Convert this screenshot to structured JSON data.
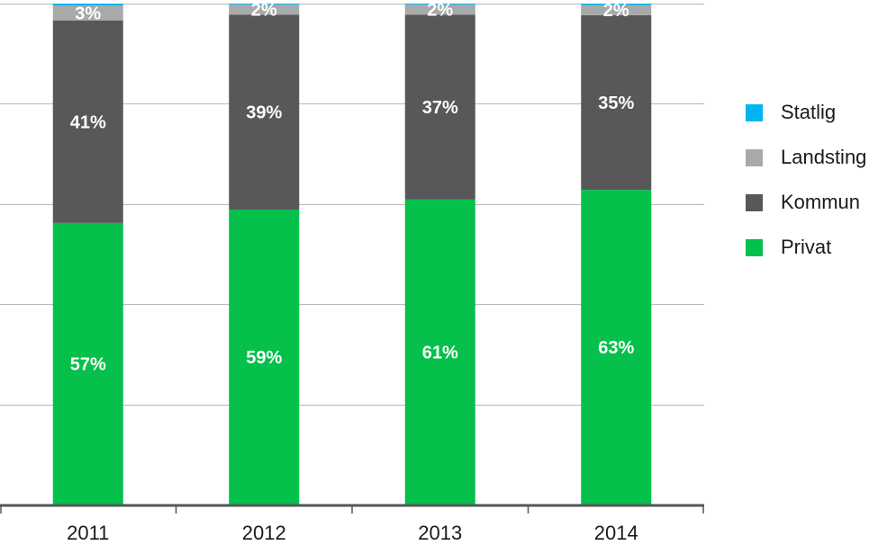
{
  "chart_data": {
    "type": "bar",
    "stacked": true,
    "percent_stacked": true,
    "categories": [
      "2011",
      "2012",
      "2013",
      "2014"
    ],
    "series": [
      {
        "name": "Privat",
        "color": "#05c04a",
        "values": [
          57,
          59,
          61,
          63
        ],
        "labels": [
          "57%",
          "59%",
          "61%",
          "63%"
        ]
      },
      {
        "name": "Kommun",
        "color": "#58585a",
        "values": [
          41,
          39,
          37,
          35
        ],
        "labels": [
          "41%",
          "39%",
          "37%",
          "35%"
        ]
      },
      {
        "name": "Landsting",
        "color": "#a9a9a9",
        "values": [
          3,
          2,
          2,
          2
        ],
        "labels": [
          "3%",
          "2%",
          "2%",
          "2%"
        ]
      },
      {
        "name": "Statlig",
        "color": "#00b4f0",
        "values": [
          0.4,
          0.2,
          0.2,
          0.3
        ],
        "labels": [
          "",
          "",
          "",
          ""
        ]
      }
    ],
    "legend_order": [
      "Statlig",
      "Landsting",
      "Kommun",
      "Privat"
    ],
    "ylim": [
      0,
      100
    ],
    "grid": true,
    "legend_position": "right",
    "title": "",
    "xlabel": "",
    "ylabel": ""
  }
}
